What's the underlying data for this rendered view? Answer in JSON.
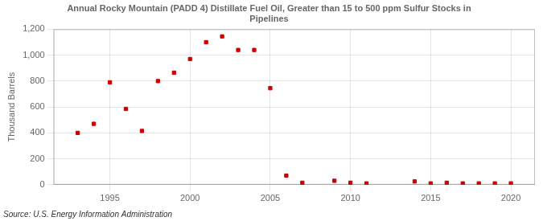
{
  "chart_data": {
    "type": "scatter",
    "title": "Annual Rocky Mountain (PADD 4) Distillate Fuel Oil, Greater than 15 to 500 ppm Sulfur Stocks in\nPipelines",
    "y_label": "Thousand Barrels",
    "annotations": [
      "Source: U.S. Energy Information Administration"
    ],
    "x": [
      1993,
      1994,
      1995,
      1996,
      1997,
      1998,
      1999,
      2000,
      2001,
      2002,
      2003,
      2004,
      2005,
      2006,
      2007,
      2008,
      2009,
      2010,
      2011,
      2012,
      2013,
      2014,
      2015,
      2016,
      2017,
      2018,
      2019,
      2020
    ],
    "values": [
      400,
      470,
      790,
      585,
      415,
      800,
      865,
      970,
      1100,
      1145,
      1040,
      1040,
      745,
      70,
      15,
      null,
      30,
      15,
      10,
      null,
      null,
      25,
      10,
      15,
      10,
      10,
      10,
      10
    ],
    "color": "#cc0000",
    "marker": "square",
    "xlim": [
      1991.5,
      2021.5
    ],
    "xticks": [
      1995,
      2000,
      2005,
      2010,
      2015,
      2020
    ],
    "ylim": [
      0,
      1200
    ],
    "yticks": [
      0,
      200,
      400,
      600,
      800,
      {
        "value": 1000,
        "label": "1,000"
      },
      {
        "value": 1200,
        "label": "1,200"
      }
    ],
    "grid": true
  }
}
